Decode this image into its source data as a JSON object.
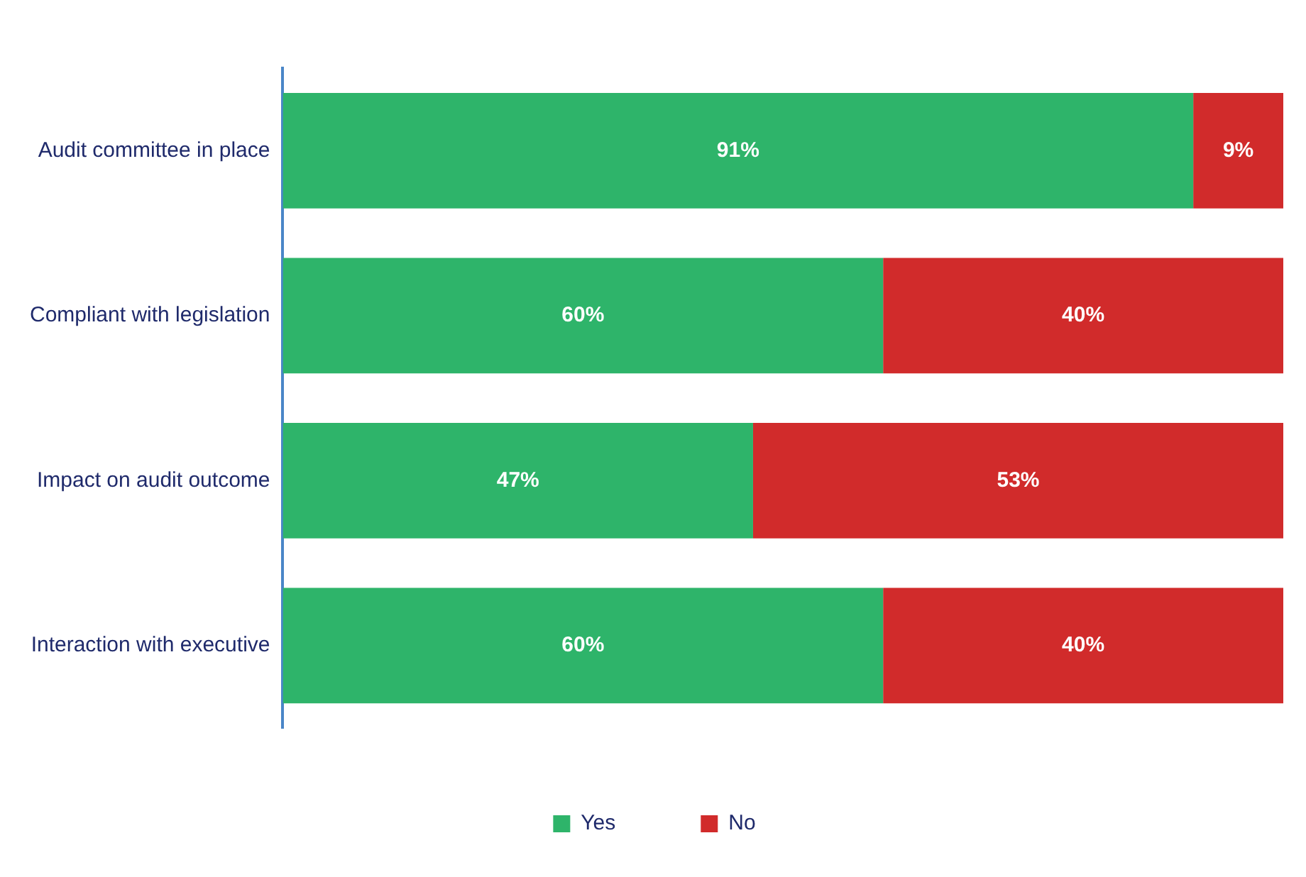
{
  "chart_data": {
    "type": "bar",
    "orientation": "horizontal",
    "stacked": true,
    "categories": [
      "Audit committee in place",
      "Compliant with legislation",
      "Impact on audit outcome",
      "Interaction with executive"
    ],
    "series": [
      {
        "name": "Yes",
        "color": "#2eb46a",
        "values": [
          91,
          60,
          47,
          60
        ],
        "value_labels": [
          "91%",
          "60%",
          "47%",
          "60%"
        ]
      },
      {
        "name": "No",
        "color": "#d12b2b",
        "values": [
          9,
          40,
          53,
          40
        ],
        "value_labels": [
          "9%",
          "40%",
          "53%",
          "40%"
        ]
      }
    ],
    "xlim": [
      0,
      100
    ],
    "tick_labels": "y",
    "grid": false,
    "legend": "bottom"
  }
}
